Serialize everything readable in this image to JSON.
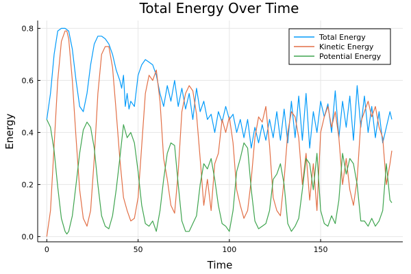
{
  "chart_data": {
    "type": "line",
    "title": "Total Energy Over Time",
    "xlabel": "Time",
    "ylabel": "Energy",
    "xlim": [
      -5,
      195
    ],
    "ylim": [
      -0.02,
      0.83
    ],
    "xticks": [
      0,
      50,
      100,
      150
    ],
    "yticks": [
      0.0,
      0.2,
      0.4,
      0.6,
      0.8
    ],
    "xtick_labels": [
      "0",
      "50",
      "100",
      "150"
    ],
    "ytick_labels": [
      "0.0",
      "0.2",
      "0.4",
      "0.6",
      "0.8"
    ],
    "grid": true,
    "legend_position": "top-right",
    "series": [
      {
        "name": "Total Energy",
        "color": "#009AFA",
        "x": [
          0,
          2,
          4,
          6,
          8,
          10,
          12,
          14,
          16,
          18,
          20,
          22,
          24,
          26,
          28,
          30,
          32,
          34,
          36,
          38,
          40,
          41,
          42,
          43,
          44,
          45,
          46,
          48,
          50,
          52,
          54,
          56,
          58,
          60,
          62,
          64,
          66,
          68,
          70,
          72,
          74,
          76,
          78,
          80,
          82,
          84,
          86,
          88,
          90,
          92,
          94,
          96,
          98,
          100,
          102,
          104,
          106,
          108,
          110,
          112,
          114,
          116,
          118,
          120,
          122,
          124,
          126,
          128,
          130,
          132,
          134,
          136,
          138,
          140,
          142,
          144,
          146,
          148,
          150,
          152,
          154,
          156,
          158,
          160,
          162,
          164,
          166,
          168,
          170,
          172,
          174,
          176,
          178,
          180,
          182,
          184,
          186,
          188,
          189
        ],
        "y": [
          0.45,
          0.55,
          0.7,
          0.79,
          0.8,
          0.8,
          0.79,
          0.72,
          0.6,
          0.5,
          0.48,
          0.55,
          0.66,
          0.74,
          0.77,
          0.77,
          0.76,
          0.74,
          0.7,
          0.64,
          0.6,
          0.57,
          0.62,
          0.5,
          0.55,
          0.49,
          0.52,
          0.5,
          0.62,
          0.66,
          0.68,
          0.67,
          0.66,
          0.62,
          0.55,
          0.5,
          0.58,
          0.52,
          0.6,
          0.5,
          0.57,
          0.49,
          0.55,
          0.45,
          0.57,
          0.48,
          0.52,
          0.45,
          0.47,
          0.4,
          0.48,
          0.44,
          0.5,
          0.45,
          0.47,
          0.4,
          0.45,
          0.38,
          0.45,
          0.34,
          0.42,
          0.36,
          0.43,
          0.37,
          0.45,
          0.38,
          0.48,
          0.37,
          0.49,
          0.36,
          0.52,
          0.38,
          0.54,
          0.37,
          0.55,
          0.34,
          0.48,
          0.4,
          0.52,
          0.46,
          0.51,
          0.4,
          0.56,
          0.38,
          0.52,
          0.42,
          0.54,
          0.37,
          0.58,
          0.42,
          0.54,
          0.4,
          0.5,
          0.38,
          0.48,
          0.36,
          0.42,
          0.48,
          0.45
        ]
      },
      {
        "name": "Kinetic Energy",
        "color": "#E26F46",
        "x": [
          0,
          2,
          4,
          6,
          8,
          10,
          11,
          12,
          14,
          16,
          18,
          20,
          22,
          24,
          26,
          28,
          30,
          32,
          34,
          36,
          38,
          40,
          42,
          44,
          46,
          48,
          50,
          52,
          54,
          56,
          58,
          60,
          62,
          64,
          66,
          68,
          70,
          72,
          74,
          76,
          78,
          80,
          82,
          84,
          86,
          88,
          90,
          92,
          94,
          96,
          98,
          100,
          102,
          104,
          106,
          108,
          110,
          112,
          114,
          116,
          118,
          120,
          122,
          124,
          126,
          128,
          130,
          132,
          134,
          136,
          138,
          140,
          142,
          144,
          146,
          148,
          150,
          152,
          154,
          156,
          158,
          160,
          162,
          164,
          166,
          168,
          170,
          172,
          174,
          176,
          178,
          180,
          182,
          184,
          186,
          188,
          189
        ],
        "y": [
          0.0,
          0.1,
          0.35,
          0.6,
          0.75,
          0.79,
          0.79,
          0.76,
          0.6,
          0.38,
          0.18,
          0.07,
          0.04,
          0.1,
          0.3,
          0.55,
          0.7,
          0.73,
          0.73,
          0.65,
          0.48,
          0.3,
          0.15,
          0.1,
          0.06,
          0.07,
          0.15,
          0.35,
          0.55,
          0.62,
          0.6,
          0.64,
          0.52,
          0.3,
          0.22,
          0.12,
          0.09,
          0.25,
          0.48,
          0.55,
          0.58,
          0.56,
          0.47,
          0.3,
          0.12,
          0.22,
          0.1,
          0.28,
          0.32,
          0.45,
          0.4,
          0.46,
          0.36,
          0.18,
          0.12,
          0.07,
          0.1,
          0.22,
          0.38,
          0.46,
          0.44,
          0.5,
          0.35,
          0.15,
          0.1,
          0.08,
          0.22,
          0.4,
          0.48,
          0.46,
          0.38,
          0.2,
          0.32,
          0.14,
          0.28,
          0.1,
          0.4,
          0.46,
          0.5,
          0.42,
          0.48,
          0.38,
          0.2,
          0.3,
          0.18,
          0.12,
          0.22,
          0.44,
          0.48,
          0.52,
          0.46,
          0.5,
          0.42,
          0.38,
          0.2,
          0.28,
          0.33
        ]
      },
      {
        "name": "Potential Energy",
        "color": "#3EA44E",
        "x": [
          0,
          2,
          4,
          6,
          8,
          10,
          11,
          12,
          14,
          16,
          18,
          20,
          22,
          24,
          26,
          28,
          30,
          32,
          34,
          36,
          38,
          40,
          42,
          44,
          46,
          48,
          50,
          52,
          54,
          56,
          58,
          60,
          62,
          64,
          66,
          68,
          70,
          72,
          74,
          76,
          78,
          80,
          82,
          84,
          86,
          88,
          90,
          92,
          94,
          96,
          98,
          100,
          102,
          104,
          106,
          108,
          110,
          112,
          114,
          116,
          118,
          120,
          122,
          124,
          126,
          128,
          130,
          132,
          134,
          136,
          138,
          140,
          142,
          144,
          146,
          148,
          150,
          152,
          154,
          156,
          158,
          160,
          162,
          164,
          166,
          168,
          170,
          172,
          174,
          176,
          178,
          180,
          182,
          184,
          186,
          188,
          189
        ],
        "y": [
          0.45,
          0.42,
          0.33,
          0.19,
          0.07,
          0.02,
          0.01,
          0.02,
          0.08,
          0.2,
          0.32,
          0.41,
          0.44,
          0.42,
          0.34,
          0.2,
          0.08,
          0.04,
          0.03,
          0.08,
          0.18,
          0.3,
          0.43,
          0.38,
          0.4,
          0.36,
          0.25,
          0.12,
          0.05,
          0.04,
          0.06,
          0.02,
          0.1,
          0.22,
          0.32,
          0.36,
          0.35,
          0.2,
          0.06,
          0.02,
          0.02,
          0.05,
          0.08,
          0.2,
          0.28,
          0.26,
          0.3,
          0.22,
          0.12,
          0.05,
          0.04,
          0.02,
          0.1,
          0.25,
          0.3,
          0.36,
          0.34,
          0.18,
          0.06,
          0.03,
          0.04,
          0.05,
          0.1,
          0.22,
          0.24,
          0.28,
          0.2,
          0.05,
          0.02,
          0.04,
          0.07,
          0.18,
          0.3,
          0.28,
          0.18,
          0.32,
          0.1,
          0.05,
          0.04,
          0.08,
          0.05,
          0.14,
          0.32,
          0.24,
          0.3,
          0.28,
          0.2,
          0.06,
          0.06,
          0.04,
          0.07,
          0.04,
          0.06,
          0.1,
          0.28,
          0.14,
          0.13
        ]
      }
    ]
  }
}
